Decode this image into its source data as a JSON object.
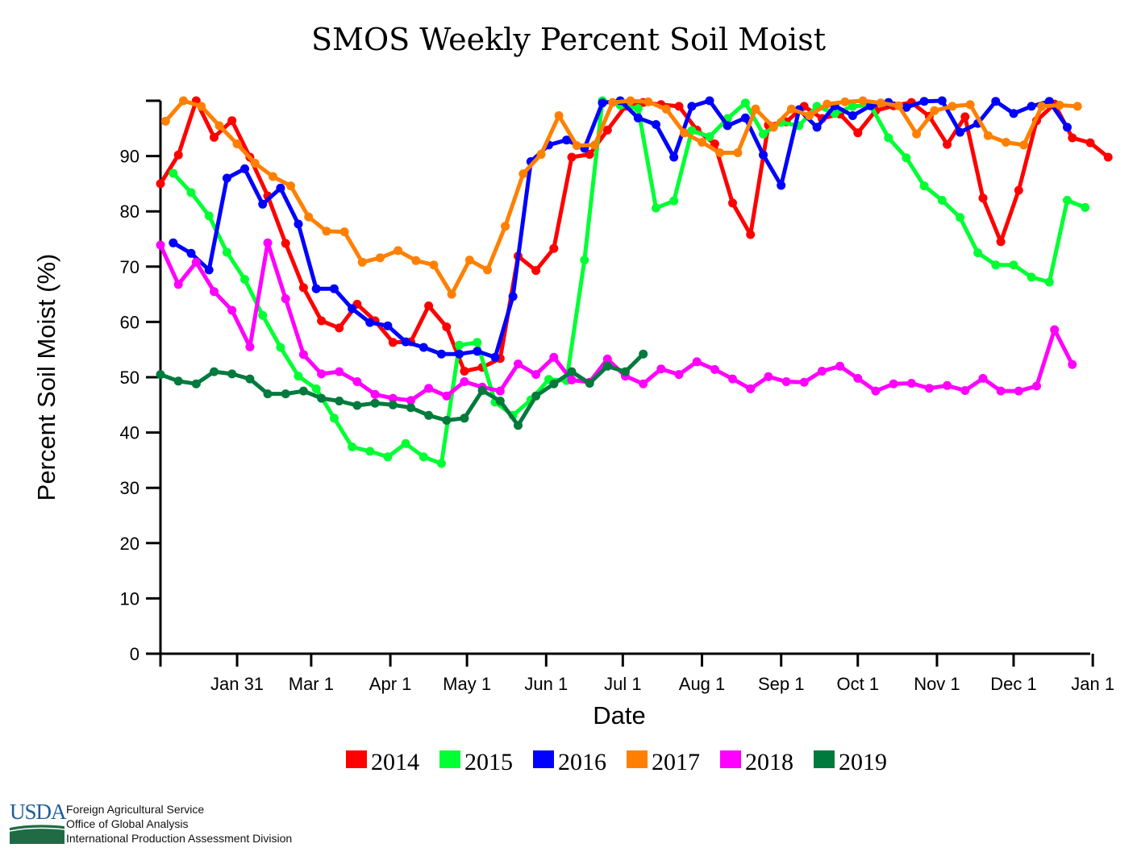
{
  "chart_data": {
    "type": "line",
    "title": "SMOS Weekly Percent Soil Moist",
    "xlabel": "Date",
    "ylabel": "Percent Soil Moist (%)",
    "ylim": [
      0,
      100
    ],
    "yticks": [
      0,
      10,
      20,
      30,
      40,
      50,
      60,
      70,
      80,
      90
    ],
    "xlim_day_of_year": [
      1,
      365
    ],
    "xticks": [
      {
        "label": "Jan 31",
        "day": 31
      },
      {
        "label": "Mar 1",
        "day": 60
      },
      {
        "label": "Apr 1",
        "day": 91
      },
      {
        "label": "May 1",
        "day": 121
      },
      {
        "label": "Jun 1",
        "day": 152
      },
      {
        "label": "Jul 1",
        "day": 182
      },
      {
        "label": "Aug 1",
        "day": 213
      },
      {
        "label": "Sep 1",
        "day": 244
      },
      {
        "label": "Oct 1",
        "day": 274
      },
      {
        "label": "Nov 1",
        "day": 305
      },
      {
        "label": "Dec 1",
        "day": 335
      },
      {
        "label": "Jan 1",
        "day": 366
      }
    ],
    "grid": false,
    "legend_position": "bottom",
    "series": [
      {
        "name": "2014",
        "color": "#ff0000",
        "start_day": 1,
        "step_days": 7,
        "values": [
          85,
          90.2,
          100,
          93.4,
          96.4,
          89.8,
          82.8,
          74.2,
          66.2,
          60.2,
          58.9,
          63.2,
          60.2,
          56.3,
          56.4,
          62.9,
          59.1,
          51.1,
          51.8,
          53.4,
          71.9,
          69.3,
          73.3,
          89.8,
          90.3,
          94.7,
          99,
          99.7,
          99.3,
          99,
          94.7,
          92.2,
          81.5,
          75.8,
          95.6,
          96.2,
          99,
          96.8,
          97.6,
          94.2,
          98.2,
          99.1,
          99.7,
          97.2,
          92.1,
          97.1,
          82.4,
          74.5,
          83.8,
          96.4,
          99.4,
          93.3,
          92.4,
          89.8
        ]
      },
      {
        "name": "2015",
        "color": "#00ff33",
        "start_day": 6,
        "step_days": 7,
        "values": [
          86.9,
          83.4,
          79.2,
          72.6,
          67.7,
          61.2,
          55.4,
          50.2,
          47.9,
          42.6,
          37.4,
          36.6,
          35.6,
          38,
          35.6,
          34.4,
          55.8,
          56.3,
          45.5,
          43.1,
          45.9,
          49.6,
          49.4,
          71.2,
          100,
          99.2,
          98.6,
          80.6,
          81.9,
          94.6,
          93.5,
          96.8,
          99.6,
          94,
          96.1,
          95.5,
          99,
          97.7,
          99,
          99.2,
          93.3,
          89.7,
          84.6,
          82,
          78.9,
          72.5,
          70.3,
          70.3,
          68.1,
          67.2,
          82,
          80.7
        ]
      },
      {
        "name": "2016",
        "color": "#0000ff",
        "start_day": 6,
        "step_days": 7,
        "values": [
          74.3,
          72.4,
          69.4,
          86,
          87.7,
          81.3,
          84.2,
          77.7,
          66,
          66,
          62.4,
          59.9,
          59.3,
          56.4,
          55.4,
          54.2,
          54.2,
          54.7,
          53.6,
          64.6,
          89,
          92,
          92.9,
          91.4,
          99.6,
          100,
          96.9,
          95.7,
          89.8,
          99,
          100,
          95.5,
          96.9,
          90.2,
          84.7,
          98.4,
          95.2,
          99.1,
          97.3,
          99.1,
          99.7,
          98.8,
          99.9,
          100,
          94.3,
          95.9,
          99.9,
          97.7,
          99,
          99.9,
          95.2
        ]
      },
      {
        "name": "2017",
        "color": "#ff8000",
        "start_day": 3,
        "step_days": 7,
        "values": [
          96.3,
          100,
          99,
          95.5,
          92.2,
          88.7,
          86.3,
          84.6,
          79,
          76.4,
          76.3,
          70.8,
          71.6,
          72.9,
          71.1,
          70.3,
          65,
          71.2,
          69.4,
          77.3,
          86.8,
          90.3,
          97.3,
          91.9,
          92,
          99.7,
          100,
          99.8,
          98.5,
          94.2,
          92.5,
          90.6,
          90.6,
          98.5,
          95.2,
          98.5,
          97.3,
          99.4,
          99.8,
          100,
          99.6,
          99.1,
          94,
          98.2,
          99,
          99.3,
          93.7,
          92.5,
          92,
          99,
          99.2,
          99
        ]
      },
      {
        "name": "2018",
        "color": "#ff00ff",
        "start_day": 1,
        "step_days": 7,
        "values": [
          73.9,
          66.8,
          70.8,
          65.5,
          62.1,
          55.5,
          74.3,
          64.2,
          54.1,
          50.6,
          51,
          49.2,
          46.9,
          46.2,
          45.8,
          48,
          46.6,
          49.2,
          48.2,
          47.5,
          52.4,
          50.5,
          53.6,
          49.5,
          49.1,
          53.3,
          50.2,
          48.8,
          51.5,
          50.5,
          52.8,
          51.4,
          49.7,
          47.9,
          50.1,
          49.2,
          49.1,
          51.1,
          52,
          49.8,
          47.5,
          48.8,
          48.9,
          48,
          48.5,
          47.6,
          49.8,
          47.5,
          47.5,
          48.4,
          58.6,
          52.3
        ]
      },
      {
        "name": "2019",
        "color": "#007a3d",
        "start_day": 1,
        "step_days": 7,
        "values": [
          50.5,
          49.3,
          48.8,
          51,
          50.6,
          49.7,
          47,
          47,
          47.5,
          46.2,
          45.7,
          44.9,
          45.3,
          45,
          44.5,
          43.1,
          42.2,
          42.6,
          47.6,
          45.7,
          41.3,
          46.6,
          48.8,
          51,
          48.9,
          52,
          51,
          54.2
        ]
      }
    ]
  },
  "footer": {
    "logo": "USDA",
    "lines": [
      "Foreign Agricultural Service",
      "Office of Global Analysis",
      "International Production Assessment Division"
    ]
  }
}
